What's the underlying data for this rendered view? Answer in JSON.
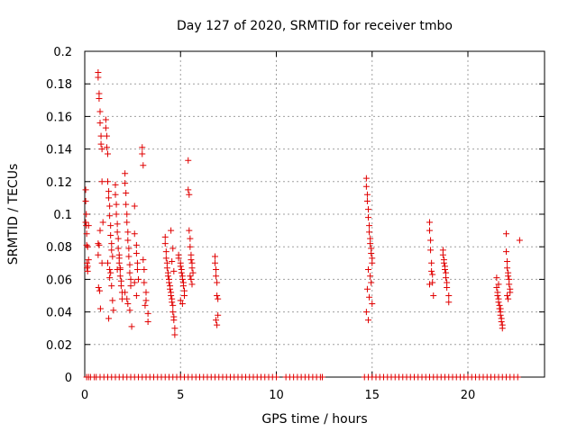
{
  "chart_data": {
    "type": "scatter",
    "title": "Day 127 of 2020, SRMTID for receiver tmbo",
    "xlabel": "GPS time / hours",
    "ylabel": "SRMTID / TECUs",
    "xlim": [
      0,
      24
    ],
    "ylim": [
      0,
      0.2
    ],
    "xticks": [
      0,
      5,
      10,
      15,
      20
    ],
    "yticks": [
      0,
      0.02,
      0.04,
      0.06,
      0.08,
      0.1,
      0.12,
      0.14,
      0.16,
      0.18,
      0.2
    ],
    "xtick_labels": [
      "0",
      "5",
      "10",
      "15",
      "20"
    ],
    "ytick_labels": [
      "0",
      "0.02",
      "0.04",
      "0.06",
      "0.08",
      "0.1",
      "0.12",
      "0.14",
      "0.16",
      "0.18",
      "0.2"
    ],
    "grid": true,
    "marker": "+",
    "color": "#e00000",
    "series": [
      {
        "name": "SRMTID",
        "x": [
          0.05,
          0.05,
          0.05,
          0.08,
          0.08,
          0.1,
          0.1,
          0.12,
          0.12,
          0.15,
          0.15,
          0.15,
          0.2,
          0.2,
          0.7,
          0.7,
          0.75,
          0.75,
          0.8,
          0.8,
          0.85,
          0.85,
          0.9,
          0.9,
          0.7,
          0.75,
          0.8,
          0.72,
          0.78,
          0.82,
          0.7,
          0.9,
          0.95,
          1.1,
          1.1,
          1.15,
          1.15,
          1.2,
          1.2,
          1.25,
          1.25,
          1.3,
          1.3,
          1.35,
          1.35,
          1.4,
          1.4,
          1.45,
          1.2,
          1.3,
          1.3,
          1.4,
          1.45,
          1.5,
          1.25,
          1.35,
          1.6,
          1.6,
          1.65,
          1.65,
          1.7,
          1.7,
          1.75,
          1.75,
          1.8,
          1.8,
          1.85,
          1.85,
          1.9,
          1.9,
          1.95,
          1.95,
          1.7,
          1.8,
          1.85,
          2.1,
          2.1,
          2.15,
          2.15,
          2.2,
          2.2,
          2.25,
          2.25,
          2.3,
          2.3,
          2.35,
          2.35,
          2.4,
          2.4,
          2.1,
          2.2,
          2.25,
          2.35,
          2.45,
          2.6,
          2.6,
          2.7,
          2.7,
          2.75,
          2.75,
          2.8,
          2.6,
          2.7,
          3.0,
          3.0,
          3.05,
          3.05,
          3.1,
          3.1,
          3.2,
          3.2,
          3.15,
          3.3,
          3.3,
          4.2,
          4.2,
          4.25,
          4.25,
          4.3,
          4.3,
          4.35,
          4.35,
          4.4,
          4.4,
          4.45,
          4.45,
          4.5,
          4.5,
          4.55,
          4.55,
          4.6,
          4.6,
          4.65,
          4.65,
          4.7,
          4.7,
          4.5,
          4.6,
          4.55,
          4.65,
          4.9,
          4.9,
          5.0,
          5.0,
          5.05,
          5.05,
          5.1,
          5.1,
          5.15,
          5.15,
          5.2,
          5.2,
          5.0,
          5.1,
          5.4,
          5.4,
          5.45,
          5.45,
          5.5,
          5.5,
          5.55,
          5.55,
          5.6,
          5.6,
          5.65,
          5.5,
          5.55,
          5.6,
          6.8,
          6.8,
          6.85,
          6.85,
          6.9,
          6.9,
          6.95,
          6.95,
          6.85,
          6.9,
          14.7,
          14.7,
          14.75,
          14.75,
          14.8,
          14.8,
          14.85,
          14.85,
          14.9,
          14.9,
          14.95,
          14.95,
          15.0,
          15.0,
          14.8,
          14.9,
          14.95,
          14.75,
          14.85,
          15.0,
          14.7,
          14.8,
          18.0,
          18.0,
          18.05,
          18.05,
          18.1,
          18.1,
          18.15,
          18.15,
          18.2,
          18.0,
          18.7,
          18.7,
          18.75,
          18.75,
          18.8,
          18.8,
          18.85,
          18.85,
          18.9,
          18.9,
          19.0,
          19.0,
          21.5,
          21.5,
          21.55,
          21.55,
          21.6,
          21.6,
          21.65,
          21.65,
          21.7,
          21.7,
          21.75,
          21.75,
          21.8,
          21.8,
          21.6,
          21.7,
          22.0,
          22.0,
          22.05,
          22.05,
          22.1,
          22.1,
          22.15,
          22.15,
          22.2,
          22.2,
          22.05,
          22.1,
          22.7
        ],
        "y": [
          0.115,
          0.108,
          0.095,
          0.1,
          0.093,
          0.088,
          0.081,
          0.07,
          0.067,
          0.068,
          0.065,
          0.08,
          0.093,
          0.072,
          0.187,
          0.184,
          0.174,
          0.171,
          0.163,
          0.156,
          0.148,
          0.143,
          0.14,
          0.12,
          0.082,
          0.081,
          0.09,
          0.055,
          0.053,
          0.042,
          0.075,
          0.07,
          0.095,
          0.158,
          0.153,
          0.148,
          0.141,
          0.137,
          0.12,
          0.114,
          0.11,
          0.105,
          0.099,
          0.093,
          0.087,
          0.082,
          0.078,
          0.074,
          0.07,
          0.066,
          0.061,
          0.056,
          0.047,
          0.041,
          0.036,
          0.064,
          0.118,
          0.112,
          0.106,
          0.1,
          0.094,
          0.089,
          0.085,
          0.079,
          0.075,
          0.07,
          0.066,
          0.062,
          0.059,
          0.056,
          0.052,
          0.048,
          0.066,
          0.073,
          0.067,
          0.125,
          0.119,
          0.113,
          0.106,
          0.1,
          0.095,
          0.089,
          0.084,
          0.079,
          0.074,
          0.069,
          0.064,
          0.06,
          0.056,
          0.052,
          0.048,
          0.045,
          0.041,
          0.031,
          0.105,
          0.088,
          0.081,
          0.076,
          0.07,
          0.066,
          0.06,
          0.058,
          0.05,
          0.141,
          0.137,
          0.13,
          0.072,
          0.066,
          0.058,
          0.052,
          0.047,
          0.044,
          0.039,
          0.034,
          0.086,
          0.082,
          0.077,
          0.073,
          0.07,
          0.067,
          0.064,
          0.062,
          0.06,
          0.058,
          0.056,
          0.054,
          0.052,
          0.05,
          0.048,
          0.046,
          0.044,
          0.04,
          0.037,
          0.035,
          0.03,
          0.026,
          0.09,
          0.079,
          0.071,
          0.065,
          0.075,
          0.073,
          0.07,
          0.068,
          0.066,
          0.064,
          0.062,
          0.06,
          0.058,
          0.056,
          0.053,
          0.05,
          0.047,
          0.045,
          0.133,
          0.115,
          0.112,
          0.09,
          0.085,
          0.08,
          0.075,
          0.072,
          0.07,
          0.067,
          0.064,
          0.062,
          0.06,
          0.057,
          0.074,
          0.07,
          0.066,
          0.062,
          0.058,
          0.05,
          0.048,
          0.038,
          0.035,
          0.032,
          0.122,
          0.117,
          0.112,
          0.108,
          0.103,
          0.098,
          0.093,
          0.089,
          0.085,
          0.082,
          0.079,
          0.076,
          0.073,
          0.07,
          0.066,
          0.062,
          0.058,
          0.054,
          0.049,
          0.045,
          0.04,
          0.035,
          0.095,
          0.09,
          0.084,
          0.078,
          0.07,
          0.065,
          0.063,
          0.058,
          0.05,
          0.057,
          0.078,
          0.075,
          0.072,
          0.07,
          0.068,
          0.066,
          0.064,
          0.061,
          0.058,
          0.055,
          0.05,
          0.046,
          0.061,
          0.055,
          0.052,
          0.05,
          0.048,
          0.046,
          0.044,
          0.042,
          0.04,
          0.038,
          0.036,
          0.034,
          0.032,
          0.03,
          0.057,
          0.042,
          0.088,
          0.077,
          0.071,
          0.067,
          0.064,
          0.062,
          0.06,
          0.057,
          0.054,
          0.052,
          0.05,
          0.048,
          0.084
        ],
        "zero_points_x": [
          0.1,
          0.2,
          0.3,
          0.5,
          0.6,
          0.8,
          1.0,
          1.2,
          1.4,
          1.6,
          1.8,
          2.0,
          2.2,
          2.4,
          2.6,
          2.8,
          3.0,
          3.2,
          3.4,
          3.6,
          3.8,
          4.0,
          4.2,
          4.4,
          4.6,
          4.8,
          5.0,
          5.2,
          5.4,
          5.6,
          5.8,
          6.0,
          6.2,
          6.4,
          6.6,
          6.8,
          7.0,
          7.2,
          7.4,
          7.6,
          7.8,
          8.0,
          8.2,
          8.4,
          8.6,
          8.8,
          9.0,
          9.2,
          9.4,
          9.6,
          9.8,
          10.0,
          10.5,
          10.7,
          10.9,
          11.1,
          11.3,
          11.5,
          11.7,
          11.9,
          12.1,
          12.3,
          12.4,
          14.6,
          14.8,
          15.0,
          15.2,
          15.4,
          15.6,
          15.8,
          16.0,
          16.2,
          16.4,
          16.6,
          16.8,
          17.0,
          17.2,
          17.4,
          17.6,
          17.8,
          18.0,
          18.2,
          18.4,
          18.6,
          18.8,
          19.0,
          19.2,
          19.4,
          19.6,
          19.8,
          20.0,
          20.2,
          20.4,
          20.6,
          20.8,
          21.0,
          21.2,
          21.4,
          21.6,
          21.8,
          22.0,
          22.2,
          22.4,
          22.6
        ]
      }
    ]
  }
}
